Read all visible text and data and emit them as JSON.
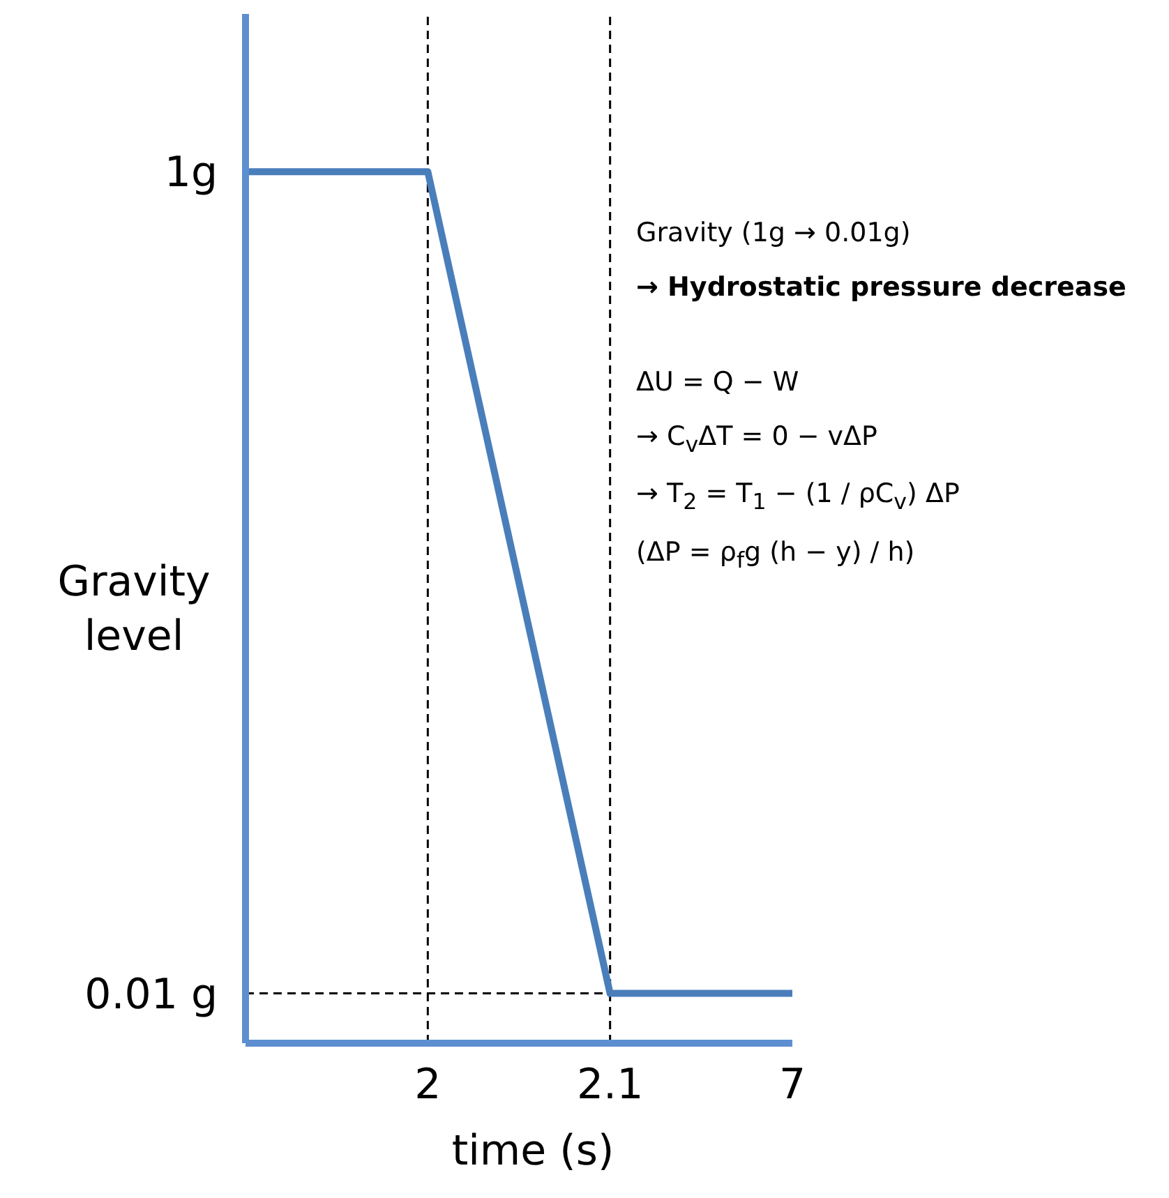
{
  "chart_data": {
    "type": "line",
    "xlabel": "time (s)",
    "ylabel": "Gravity level",
    "categories": [
      null,
      "2",
      "2.1",
      "7"
    ],
    "series": [
      {
        "color": "#4a7ebb",
        "values": [
          1,
          1,
          0.01,
          0.01
        ]
      }
    ],
    "ylim": [
      -0.05,
      1.19
    ],
    "yticks": [
      {
        "value": 1,
        "label": "1g"
      },
      {
        "value": 0.01,
        "label": "0.01 g"
      }
    ],
    "ref_lines": [
      {
        "axis": "y",
        "value": 0.01,
        "color": "#000000",
        "line_style": "dashed"
      },
      {
        "axis": "x",
        "value": "2",
        "color": "#000000",
        "line_style": "dashed"
      },
      {
        "axis": "x",
        "value": "2.1",
        "color": "#000000",
        "line_style": "dashed"
      }
    ],
    "annotations": [
      "Gravity (1g → 0.01g)",
      "→ Hydrostatic pressure decrease",
      "ΔU = Q − W",
      "→ C$_{v}$ΔT = 0 − vΔP",
      "→ T$_{2}$ = T$_{1}$ − (1 / ρC$_{v}$) ΔP",
      "(ΔP = ρ$_{f}$g (h − y) / h)"
    ],
    "grid": false,
    "legend": false,
    "marker": "none",
    "line_style": "solid"
  }
}
